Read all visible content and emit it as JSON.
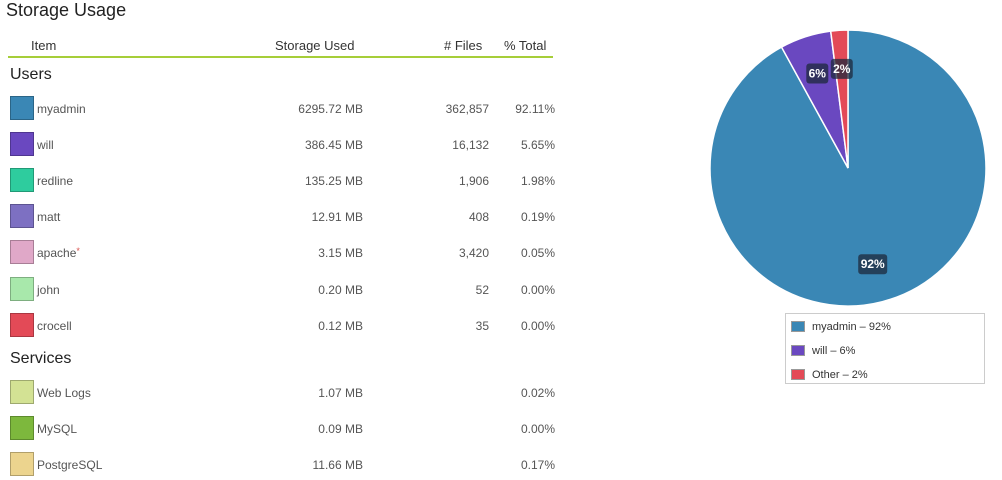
{
  "title": "Storage Usage",
  "columns": {
    "item": "Item",
    "used": "Storage Used",
    "files": "# Files",
    "total": "% Total"
  },
  "sections": {
    "users": "Users",
    "services": "Services"
  },
  "users": [
    {
      "name": "myadmin",
      "used": "6295.72 MB",
      "files": "362,857",
      "pct": "92.11%",
      "color": "#3a87b5"
    },
    {
      "name": "will",
      "used": "386.45 MB",
      "files": "16,132",
      "pct": "5.65%",
      "color": "#6a48c0"
    },
    {
      "name": "redline",
      "used": "135.25 MB",
      "files": "1,906",
      "pct": "1.98%",
      "color": "#2ecc9e"
    },
    {
      "name": "matt",
      "used": "12.91 MB",
      "files": "408",
      "pct": "0.19%",
      "color": "#7d70c2"
    },
    {
      "name": "apache",
      "marker": "*",
      "used": "3.15 MB",
      "files": "3,420",
      "pct": "0.05%",
      "color": "#e0a8c8"
    },
    {
      "name": "john",
      "used": "0.20 MB",
      "files": "52",
      "pct": "0.00%",
      "color": "#a8e8ab"
    },
    {
      "name": "crocell",
      "used": "0.12 MB",
      "files": "35",
      "pct": "0.00%",
      "color": "#e34a57"
    }
  ],
  "services": [
    {
      "name": "Web Logs",
      "used": "1.07 MB",
      "files": "",
      "pct": "0.02%",
      "color": "#d3e294"
    },
    {
      "name": "MySQL",
      "used": "0.09 MB",
      "files": "",
      "pct": "0.00%",
      "color": "#7db83d"
    },
    {
      "name": "PostgreSQL",
      "used": "11.66 MB",
      "files": "",
      "pct": "0.17%",
      "color": "#ecd48e"
    }
  ],
  "chart_data": {
    "type": "pie",
    "categories": [
      "myadmin",
      "will",
      "Other"
    ],
    "values": [
      92,
      6,
      2
    ],
    "slice_labels": [
      "92%",
      "6%",
      "2%"
    ],
    "colors": [
      "#3a87b5",
      "#6a48c0",
      "#e34a57"
    ],
    "legend": [
      "myadmin – 92%",
      "will – 6%",
      "Other – 2%"
    ],
    "legend_position": "bottom"
  }
}
